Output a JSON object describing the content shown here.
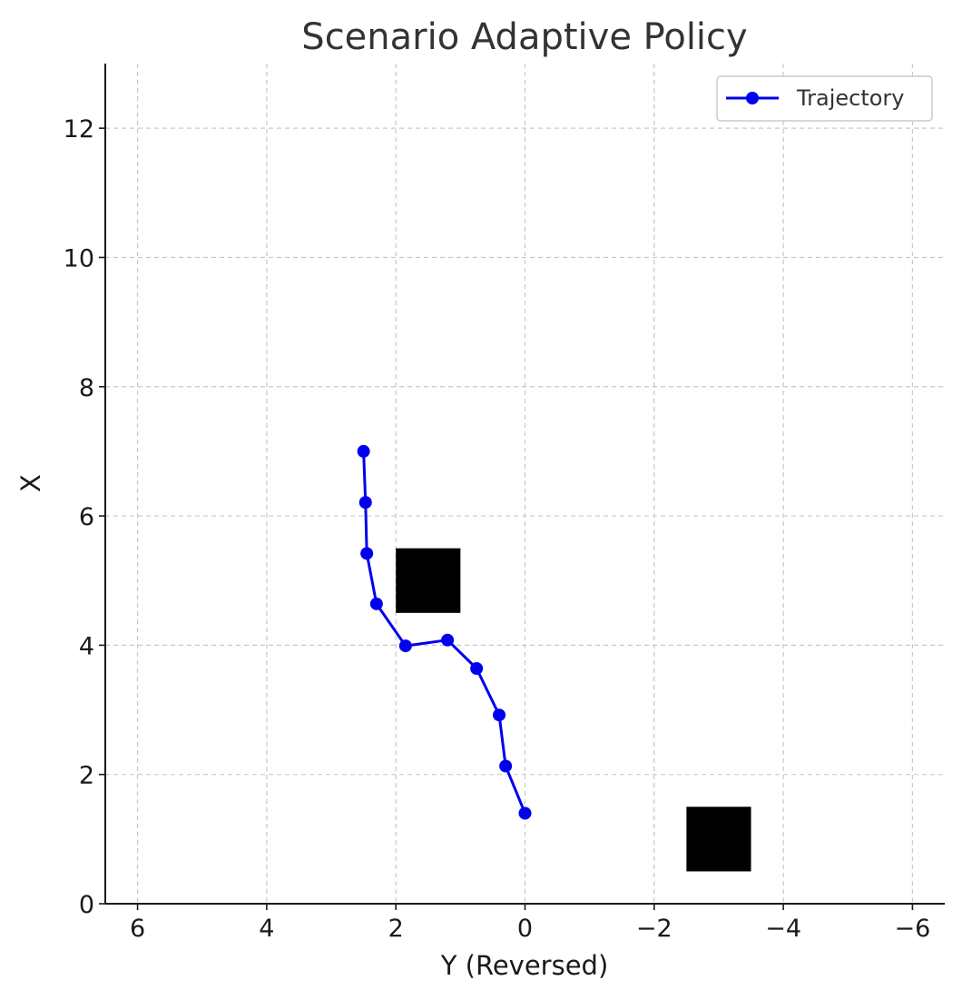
{
  "chart_data": {
    "type": "line",
    "title": "Scenario Adaptive Policy",
    "xlabel": "Y (Reversed)",
    "ylabel": "X",
    "xlim": [
      6.5,
      -6.5
    ],
    "ylim": [
      0,
      13
    ],
    "x_ticks": [
      6,
      4,
      2,
      0,
      -2,
      -4,
      -6
    ],
    "x_tick_labels": [
      "6",
      "4",
      "2",
      "0",
      "−2",
      "−4",
      "−6"
    ],
    "y_ticks": [
      0,
      2,
      4,
      6,
      8,
      10,
      12
    ],
    "y_tick_labels": [
      "0",
      "2",
      "4",
      "6",
      "8",
      "10",
      "12"
    ],
    "grid": true,
    "legend": {
      "position": "top-right",
      "entries": [
        "Trajectory"
      ]
    },
    "series": [
      {
        "name": "Trajectory",
        "color": "#0000ee",
        "marker": "circle",
        "points": [
          {
            "y": 0.0,
            "x": 1.4
          },
          {
            "y": 0.3,
            "x": 2.13
          },
          {
            "y": 0.4,
            "x": 2.92
          },
          {
            "y": 0.75,
            "x": 3.64
          },
          {
            "y": 1.2,
            "x": 4.08
          },
          {
            "y": 1.85,
            "x": 3.99
          },
          {
            "y": 2.3,
            "x": 4.64
          },
          {
            "y": 2.45,
            "x": 5.42
          },
          {
            "y": 2.47,
            "x": 6.21
          },
          {
            "y": 2.5,
            "x": 7.0
          }
        ]
      }
    ],
    "obstacles": [
      {
        "y_range": [
          1.0,
          2.0
        ],
        "x_range": [
          4.5,
          5.5
        ],
        "color": "#000000"
      },
      {
        "y_range": [
          -2.5,
          -3.5
        ],
        "x_range": [
          0.5,
          1.5
        ],
        "color": "#000000"
      }
    ]
  }
}
